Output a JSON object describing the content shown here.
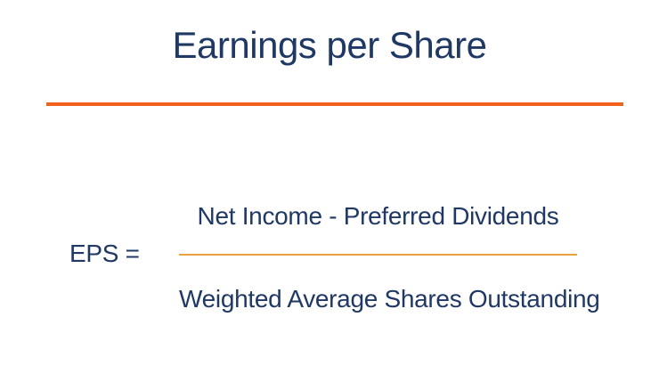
{
  "slide": {
    "title": "Earnings per Share",
    "formula": {
      "lhs": "EPS =",
      "numerator": "Net Income - Preferred Dividends",
      "denominator": "Weighted Average Shares Outstanding"
    },
    "colors": {
      "text_navy": "#1F3864",
      "divider_orange": "#F2611D",
      "fraction_line_gold": "#E8A33D",
      "background": "#FFFFFF"
    }
  }
}
